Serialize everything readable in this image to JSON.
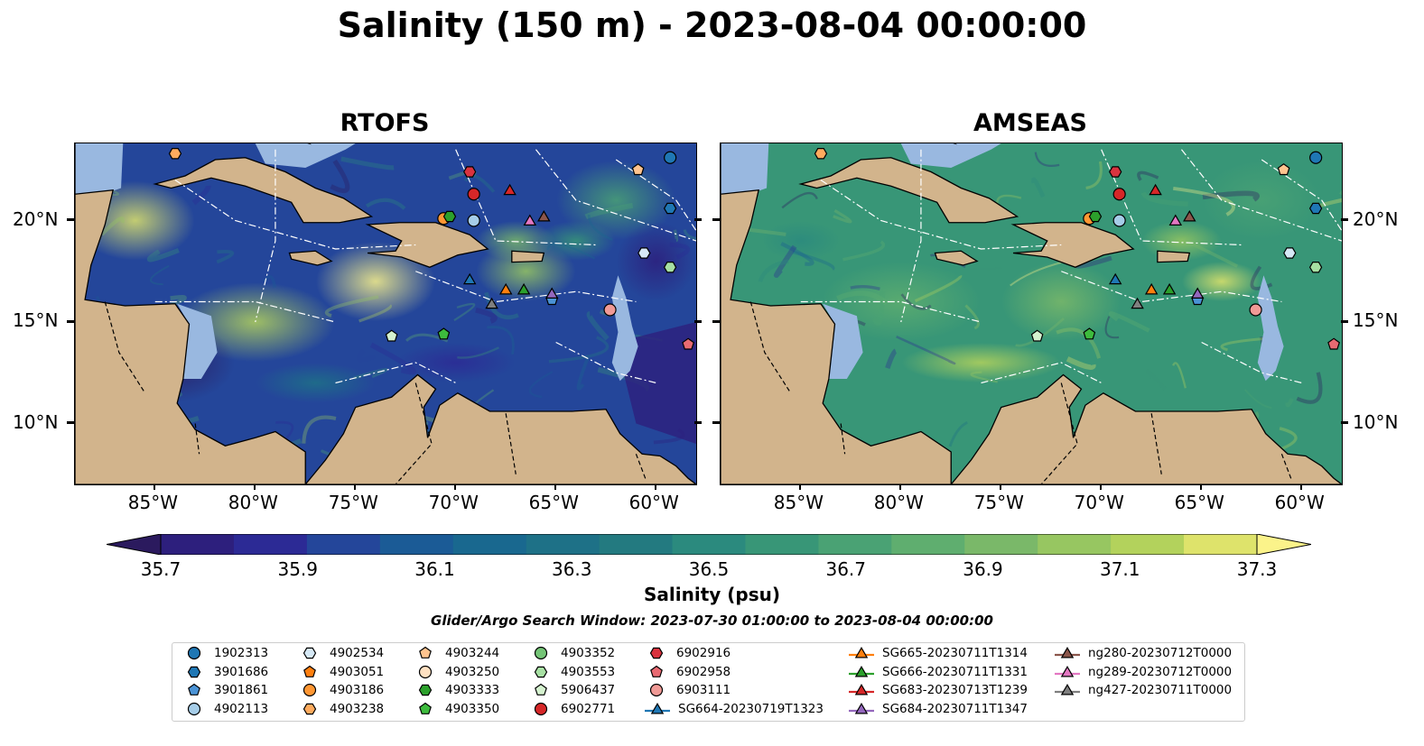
{
  "title": "Salinity (150 m) - 2023-08-04 00:00:00",
  "panels": [
    {
      "title": "RTOFS",
      "palette": "rtofs"
    },
    {
      "title": "AMSEAS",
      "palette": "amseas"
    }
  ],
  "x_ticks": [
    "85°W",
    "80°W",
    "75°W",
    "70°W",
    "65°W",
    "60°W"
  ],
  "y_ticks": [
    "20°N",
    "15°N",
    "10°N"
  ],
  "extent": {
    "lon_min": -89,
    "lon_max": -58,
    "lat_min": 7,
    "lat_max": 23.8
  },
  "colorbar": {
    "ticks": [
      "35.7",
      "35.9",
      "36.1",
      "36.3",
      "36.5",
      "36.7",
      "36.9",
      "37.1",
      "37.3"
    ],
    "label": "Salinity (psu)",
    "colors": [
      "#2b1a5e",
      "#2d1f7d",
      "#2c2a95",
      "#24469a",
      "#1b5b96",
      "#19688f",
      "#1e7187",
      "#237a80",
      "#2b8a7e",
      "#389677",
      "#4aa274",
      "#5fae6f",
      "#7ab869",
      "#97c661",
      "#b3d25c",
      "#dee36b",
      "#fbf38a"
    ]
  },
  "search_window": "Glider/Argo Search Window: 2023-07-30 01:00:00 to 2023-08-04 00:00:00",
  "colors": {
    "land": "#d2b48c",
    "shallow": "#99b8e0"
  },
  "legend": [
    {
      "label": "1902313",
      "marker": "circle",
      "color": "#1f77b4"
    },
    {
      "label": "3901686",
      "marker": "hexagon",
      "color": "#1f77b4"
    },
    {
      "label": "3901861",
      "marker": "pentagon",
      "color": "#4a93d6"
    },
    {
      "label": "4902113",
      "marker": "circle",
      "color": "#a6cde8"
    },
    {
      "label": "4902534",
      "marker": "hexagon",
      "color": "#d6e9f6"
    },
    {
      "label": "4903051",
      "marker": "pentagon",
      "color": "#ff7f0e"
    },
    {
      "label": "4903186",
      "marker": "circle",
      "color": "#ff9733"
    },
    {
      "label": "4903238",
      "marker": "hexagon",
      "color": "#ffab5e"
    },
    {
      "label": "4903244",
      "marker": "pentagon",
      "color": "#ffc48f"
    },
    {
      "label": "4903250",
      "marker": "circle",
      "color": "#ffe1c2"
    },
    {
      "label": "4903333",
      "marker": "hexagon",
      "color": "#2ca02c"
    },
    {
      "label": "4903350",
      "marker": "pentagon",
      "color": "#3dbb3d"
    },
    {
      "label": "4903352",
      "marker": "circle",
      "color": "#74c476"
    },
    {
      "label": "4903553",
      "marker": "hexagon",
      "color": "#a7e0a3"
    },
    {
      "label": "5906437",
      "marker": "pentagon",
      "color": "#d5f2cf"
    },
    {
      "label": "6902771",
      "marker": "circle",
      "color": "#d62728"
    },
    {
      "label": "6902916",
      "marker": "hexagon",
      "color": "#d9333f"
    },
    {
      "label": "6902958",
      "marker": "pentagon",
      "color": "#e86a72"
    },
    {
      "label": "6903111",
      "marker": "circle",
      "color": "#f09a96"
    },
    {
      "label": "SG664-20230719T1323",
      "marker": "triangle-line",
      "color": "#1f77b4"
    },
    {
      "label": "SG665-20230711T1314",
      "marker": "triangle-line",
      "color": "#ff7f0e"
    },
    {
      "label": "SG666-20230711T1331",
      "marker": "triangle-line",
      "color": "#2ca02c"
    },
    {
      "label": "SG683-20230713T1239",
      "marker": "triangle-line",
      "color": "#d62728"
    },
    {
      "label": "SG684-20230711T1347",
      "marker": "triangle-line",
      "color": "#9467bd"
    },
    {
      "label": "ng280-20230712T0000",
      "marker": "triangle-line",
      "color": "#8c564b"
    },
    {
      "label": "ng289-20230712T0000",
      "marker": "triangle-line",
      "color": "#e377c2"
    },
    {
      "label": "ng427-20230711T0000",
      "marker": "triangle-line",
      "color": "#7f7f7f"
    }
  ],
  "observations": [
    {
      "id": "1902313",
      "lon": -59.3,
      "lat": 23.1
    },
    {
      "id": "3901686",
      "lon": -59.3,
      "lat": 20.6
    },
    {
      "id": "4903244",
      "lon": -60.9,
      "lat": 22.5
    },
    {
      "id": "4903238",
      "lon": -84.0,
      "lat": 23.3
    },
    {
      "id": "6902916",
      "lon": -69.3,
      "lat": 22.4
    },
    {
      "id": "6902771",
      "lon": -69.1,
      "lat": 21.3
    },
    {
      "id": "4902113",
      "lon": -69.1,
      "lat": 20.0
    },
    {
      "id": "4903186",
      "lon": -70.6,
      "lat": 20.1
    },
    {
      "id": "4903333",
      "lon": -70.3,
      "lat": 20.2
    },
    {
      "id": "4902534",
      "lon": -60.6,
      "lat": 18.4
    },
    {
      "id": "4903553",
      "lon": -59.3,
      "lat": 17.7
    },
    {
      "id": "3901861",
      "lon": -65.2,
      "lat": 16.1
    },
    {
      "id": "6903111",
      "lon": -62.3,
      "lat": 15.6
    },
    {
      "id": "6902958",
      "lon": -58.4,
      "lat": 13.9
    },
    {
      "id": "5906437",
      "lon": -73.2,
      "lat": 14.3
    },
    {
      "id": "4903350",
      "lon": -70.6,
      "lat": 14.4
    },
    {
      "id": "SG683-20230713T1239",
      "lon": -67.3,
      "lat": 21.5
    },
    {
      "id": "ng289-20230712T0000",
      "lon": -66.3,
      "lat": 20.0
    },
    {
      "id": "ng280-20230712T0000",
      "lon": -65.6,
      "lat": 20.2
    },
    {
      "id": "SG664-20230719T1323",
      "lon": -69.3,
      "lat": 17.1
    },
    {
      "id": "SG665-20230711T1314",
      "lon": -67.5,
      "lat": 16.6
    },
    {
      "id": "SG666-20230711T1331",
      "lon": -66.6,
      "lat": 16.6
    },
    {
      "id": "SG684-20230711T1347",
      "lon": -65.2,
      "lat": 16.4
    },
    {
      "id": "ng427-20230711T0000",
      "lon": -68.2,
      "lat": 15.9
    }
  ]
}
